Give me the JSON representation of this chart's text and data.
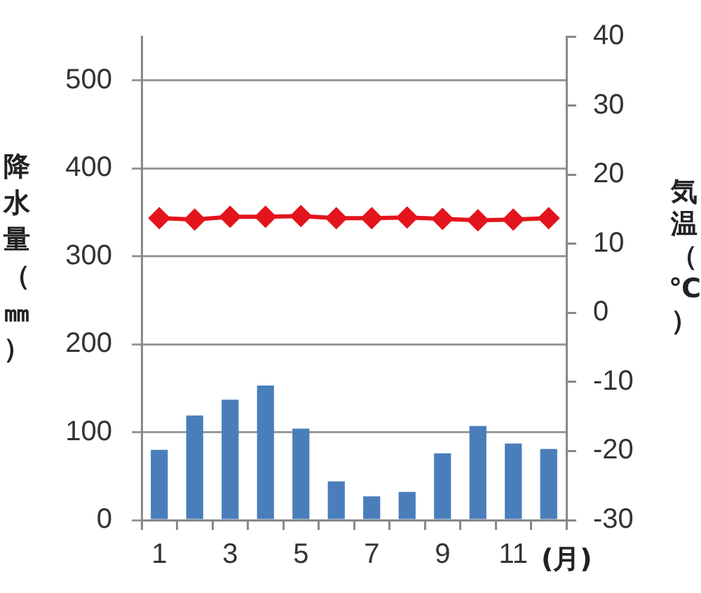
{
  "chart_data": {
    "type": "bar",
    "categories": [
      "1",
      null,
      "3",
      null,
      "5",
      null,
      "7",
      null,
      "9",
      null,
      "11",
      null
    ],
    "xlabel": "(月)",
    "ylabel": "降水量（㎜）",
    "y2label": "気温（℃）",
    "series": [
      {
        "color": "#4a7ebb",
        "values": [
          80,
          119,
          137,
          153,
          104,
          44,
          27,
          32,
          76,
          107,
          87,
          81
        ]
      },
      {
        "type": "line",
        "axis": "y2",
        "color": "#e3141c",
        "values": [
          13.7,
          13.5,
          13.9,
          13.9,
          14.0,
          13.7,
          13.7,
          13.8,
          13.6,
          13.4,
          13.5,
          13.7
        ]
      }
    ],
    "ylim": [
      0,
      550
    ],
    "yticks": [
      0,
      100,
      200,
      300,
      400,
      500
    ],
    "y2lim": [
      -30,
      40
    ],
    "y2ticks": [
      -30,
      -20,
      -10,
      0,
      10,
      20,
      30,
      40
    ],
    "grid": "y",
    "marker": "diamond"
  }
}
